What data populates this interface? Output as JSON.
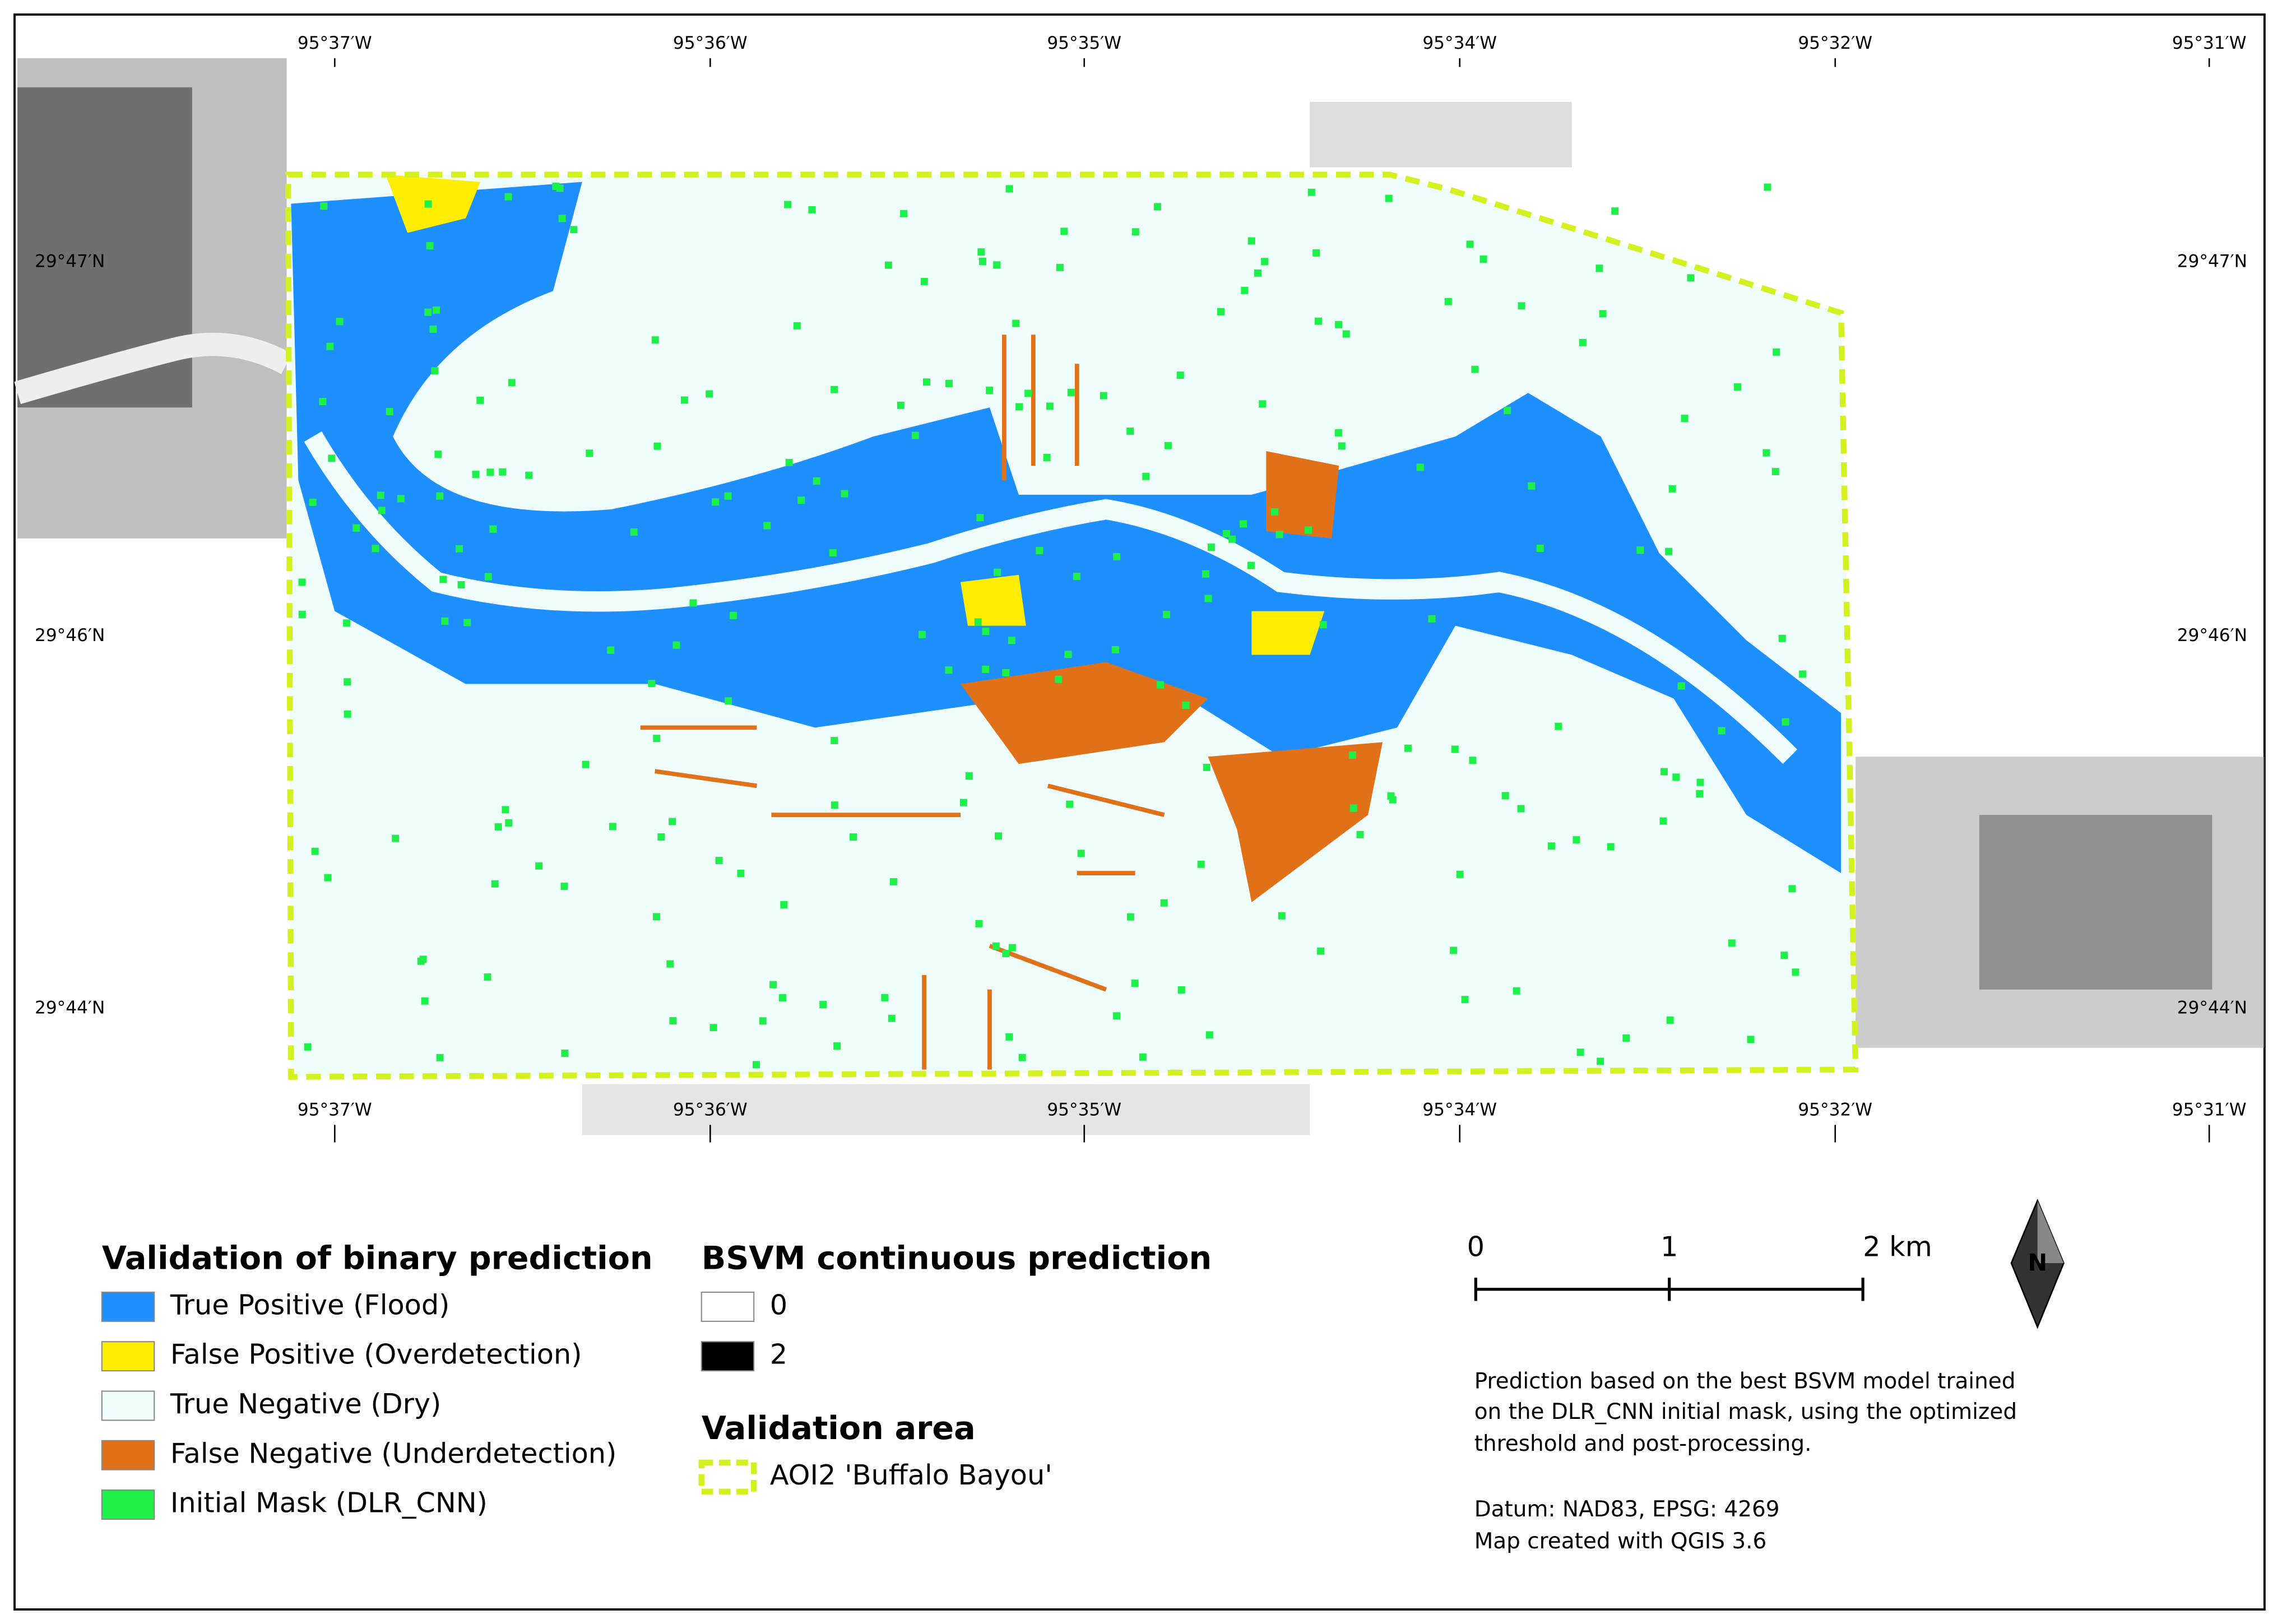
{
  "map": {
    "top_labels": [
      "95°37′W",
      "95°36′W",
      "95°35′W",
      "95°34′W",
      "95°32′W",
      "95°31′W"
    ],
    "bottom_labels": [
      "95°37′W",
      "95°36′W",
      "95°35′W",
      "95°34′W",
      "95°32′W",
      "95°31′W"
    ],
    "left_labels": [
      "29°47′N",
      "29°46′N",
      "29°44′N"
    ],
    "right_labels": [
      "29°47′N",
      "29°46′N",
      "29°44′N"
    ]
  },
  "legend": {
    "validation": {
      "title": "Validation of binary prediction",
      "items": [
        {
          "label": "True Positive (Flood)",
          "color": "#1e8fff"
        },
        {
          "label": "False Positive (Overdetection)",
          "color": "#ffee00"
        },
        {
          "label": "True Negative (Dry)",
          "color": "#effcfc"
        },
        {
          "label": "False Negative (Underdetection)",
          "color": "#e07119"
        },
        {
          "label": "Initial Mask (DLR_CNN)",
          "color": "#1ef04a"
        }
      ]
    },
    "bsvm": {
      "title": "BSVM continuous prediction",
      "items": [
        {
          "label": "0",
          "color": "#ffffff"
        },
        {
          "label": "2",
          "color": "#000000"
        }
      ]
    },
    "area": {
      "title": "Validation area",
      "items": [
        {
          "label": "AOI2 'Buffalo Bayou'",
          "color": "#d4f01e"
        }
      ]
    }
  },
  "scale_bar": {
    "labels": [
      "0",
      "1",
      "2 km"
    ]
  },
  "north_arrow": "N",
  "notes": [
    "Prediction based on the best BSVM model trained",
    "on the DLR_CNN initial mask, using the optimized",
    "threshold and post-processing.",
    "Datum: NAD83, EPSG: 4269",
    "Map created with QGIS 3.6"
  ]
}
